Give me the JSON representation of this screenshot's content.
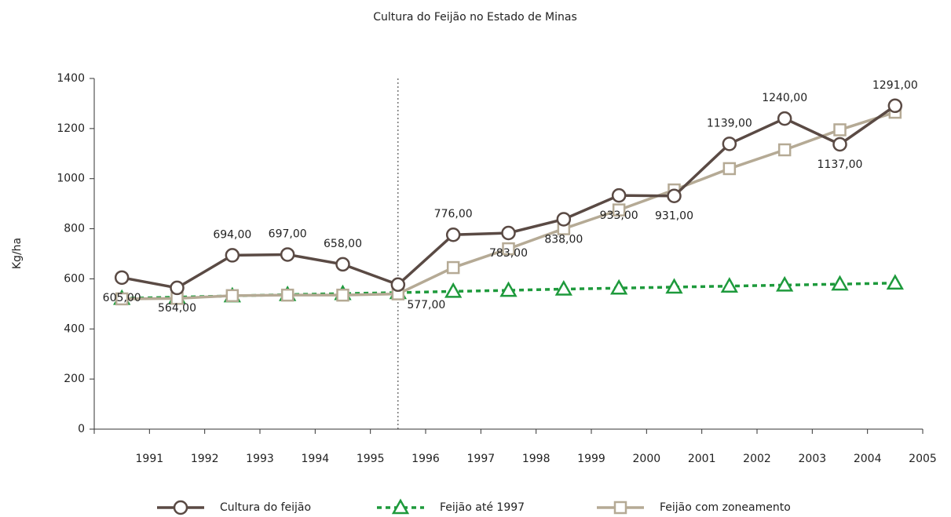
{
  "chart_data": {
    "type": "line",
    "title": "Cultura do Feijão no Estado de Minas",
    "y_label": "Kg/ha",
    "categories": [
      "1991",
      "1992",
      "1993",
      "1994",
      "1995",
      "1996",
      "1997",
      "1998",
      "1999",
      "2000",
      "2001",
      "2002",
      "2003",
      "2004",
      "2005"
    ],
    "ylim": [
      0,
      1400
    ],
    "yticks": [
      0,
      200,
      400,
      600,
      800,
      1000,
      1200,
      1400
    ],
    "legend": "bottom",
    "series": [
      {
        "name": "Cultura do feijão",
        "color": "#5a4a44",
        "marker": "circle",
        "dash": false,
        "values": [
          605,
          564,
          694,
          697,
          658,
          577,
          776,
          783,
          838,
          933,
          931,
          1139,
          1240,
          1137,
          1291
        ],
        "value_labels": [
          "605,00",
          "564,00",
          "694,00",
          "697,00",
          "658,00",
          "577,00",
          "776,00",
          "783,00",
          "838,00",
          "933,00",
          "931,00",
          "1139,00",
          "1240,00",
          "1137,00",
          "1291,00"
        ]
      },
      {
        "name": "Feijão até 1997",
        "color": "#1e9a3c",
        "marker": "triangle",
        "dash": true,
        "values": [
          522,
          527,
          532,
          537,
          541,
          545,
          550,
          554,
          559,
          563,
          567,
          571,
          575,
          579,
          583
        ]
      },
      {
        "name": "Feijão com zoneamento",
        "color": "#b5aa95",
        "marker": "square",
        "dash": false,
        "values": [
          520,
          522,
          533,
          535,
          535,
          540,
          645,
          720,
          800,
          875,
          955,
          1040,
          1115,
          1195,
          1265
        ]
      }
    ]
  }
}
